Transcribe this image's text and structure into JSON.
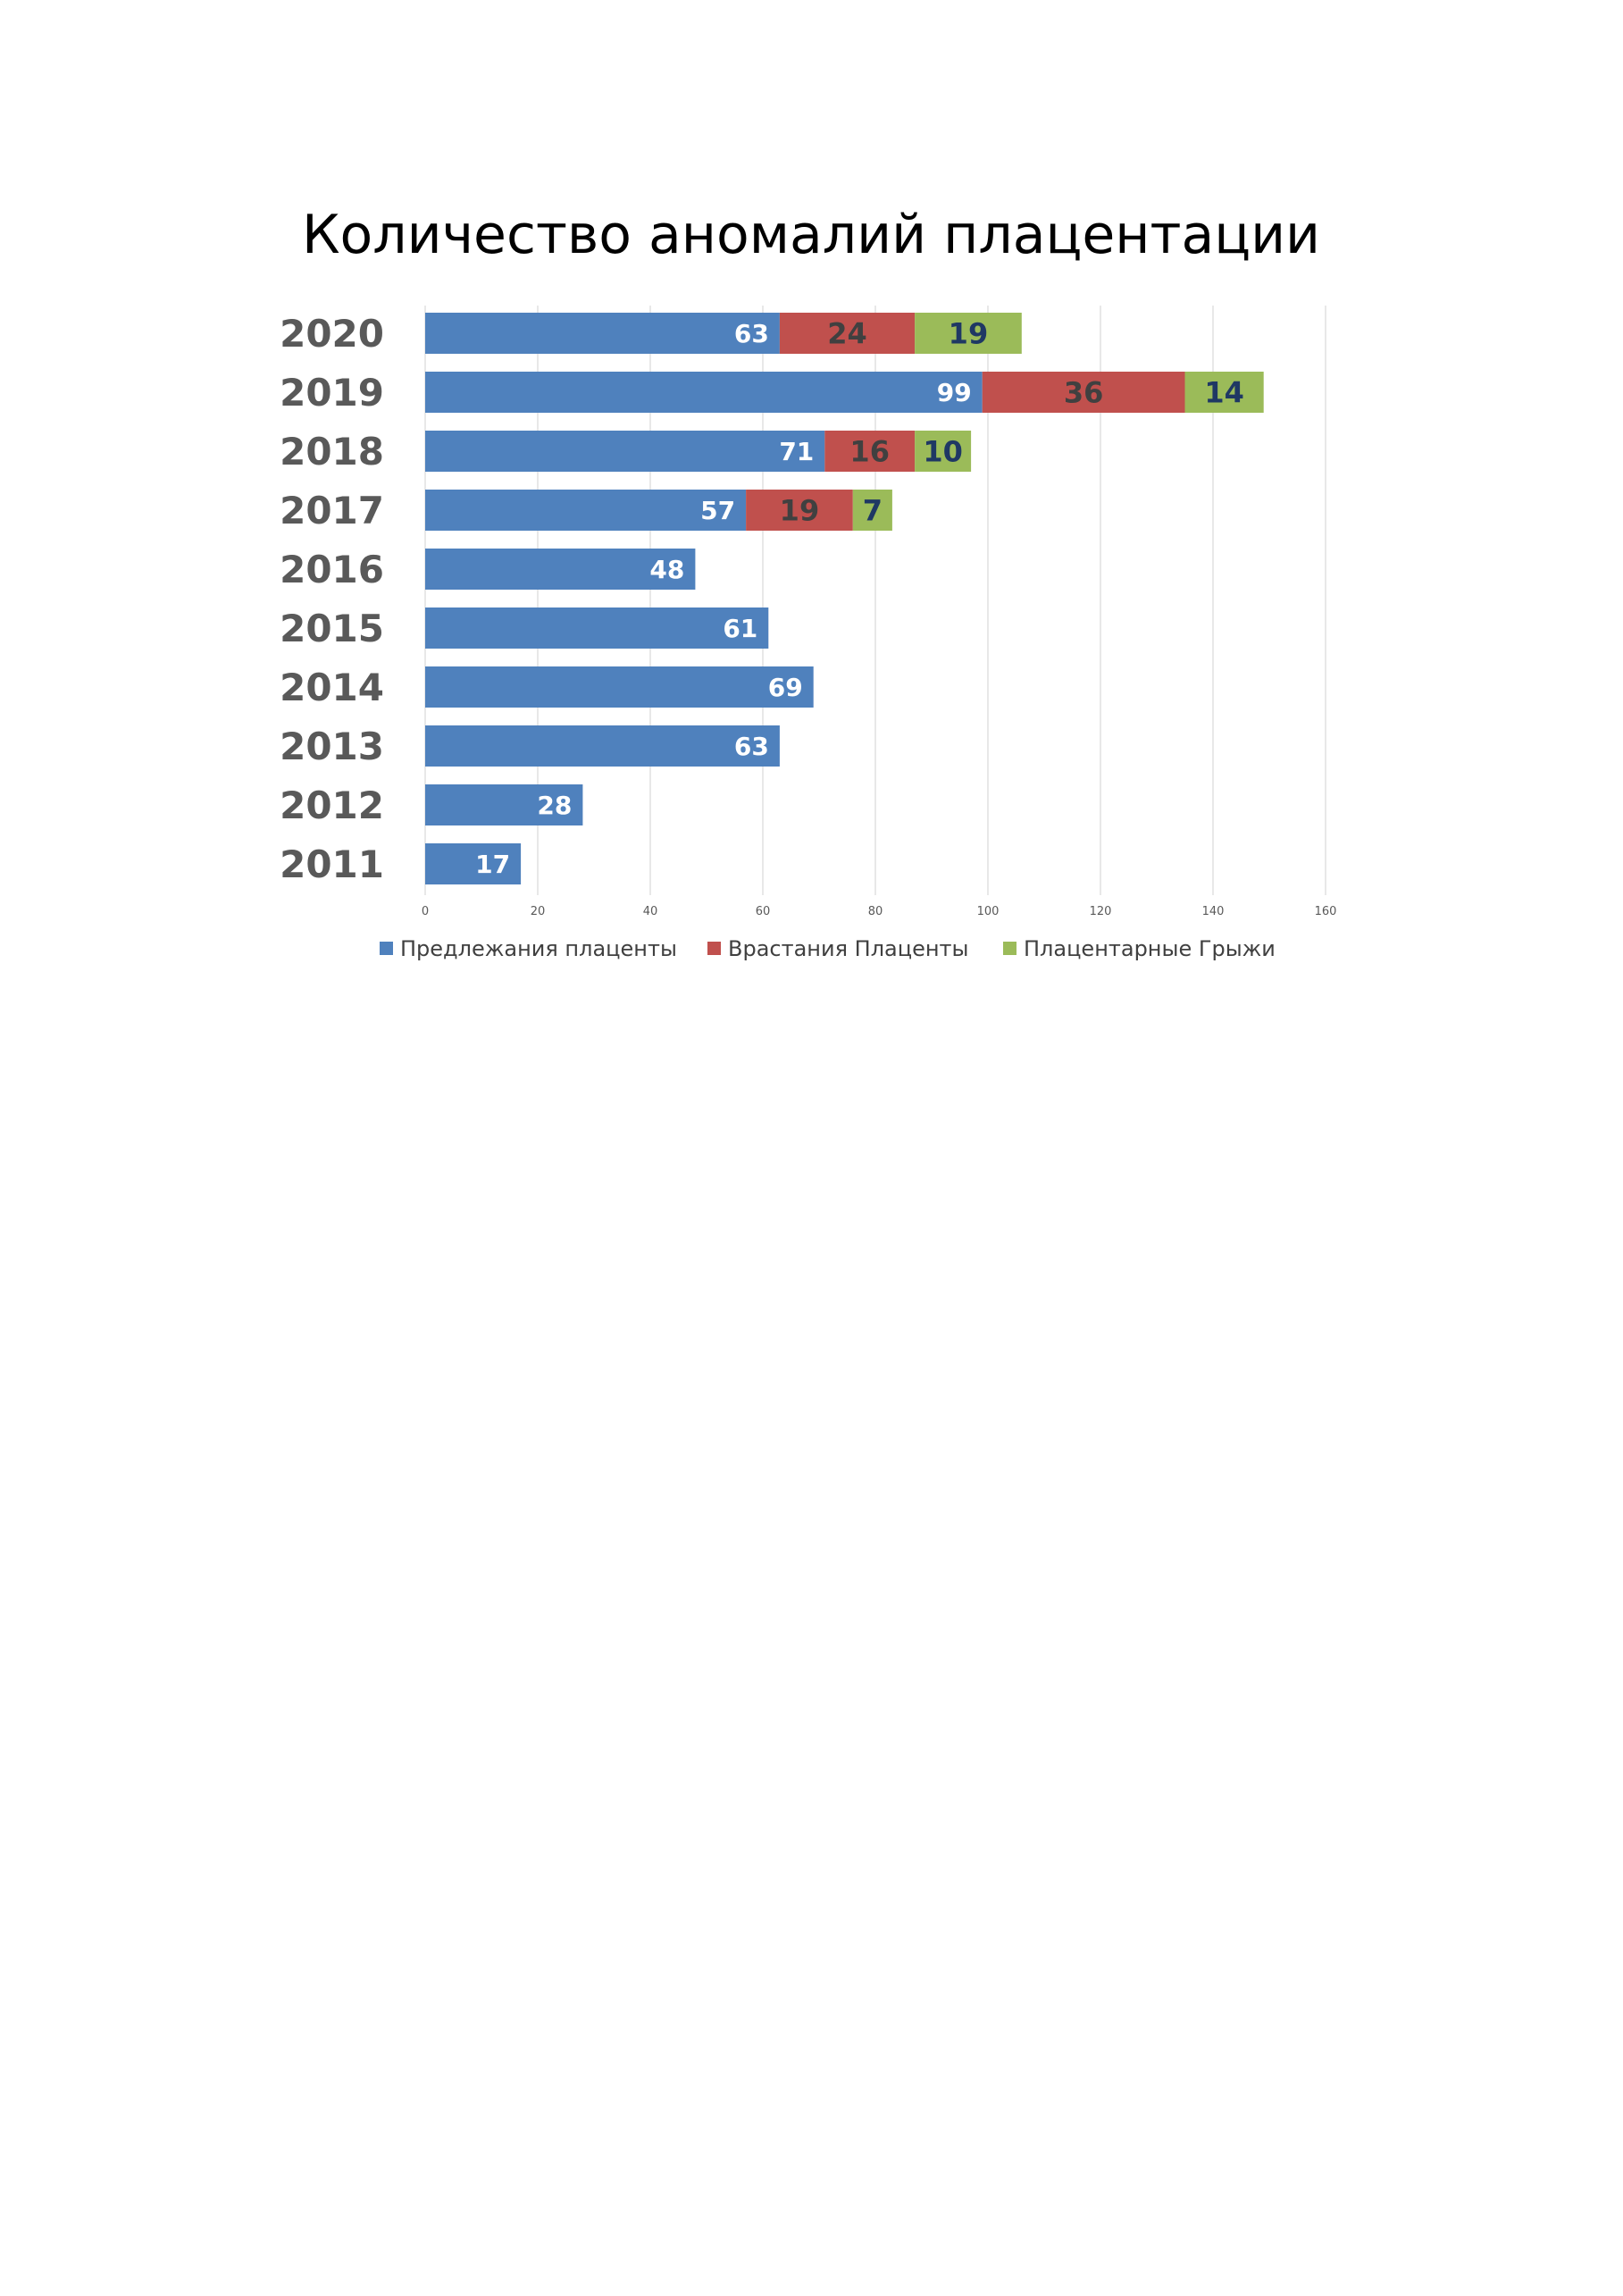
{
  "chart_data": {
    "type": "bar",
    "orientation": "horizontal",
    "stacked": true,
    "title": "Количество аномалий  плацентации",
    "categories": [
      "2020",
      "2019",
      "2018",
      "2017",
      "2016",
      "2015",
      "2014",
      "2013",
      "2012",
      "2011"
    ],
    "series": [
      {
        "name": "Предлежания плаценты",
        "color": "#4F81BD",
        "label_color": "#FFFFFF",
        "values": [
          63,
          99,
          71,
          57,
          48,
          61,
          69,
          63,
          28,
          17
        ]
      },
      {
        "name": "Врастания Плаценты",
        "color": "#C0504D",
        "label_color": "#404040",
        "values": [
          24,
          36,
          16,
          19,
          null,
          null,
          null,
          null,
          null,
          null
        ]
      },
      {
        "name": "Плацентарные Грыжи",
        "color": "#9BBB59",
        "label_color": "#1F3864",
        "values": [
          19,
          14,
          10,
          7,
          null,
          null,
          null,
          null,
          null,
          null
        ]
      }
    ],
    "xlim": [
      0,
      160
    ],
    "xticks": [
      0,
      20,
      40,
      60,
      80,
      100,
      120,
      140,
      160
    ],
    "grid": true,
    "legend_position": "bottom"
  }
}
